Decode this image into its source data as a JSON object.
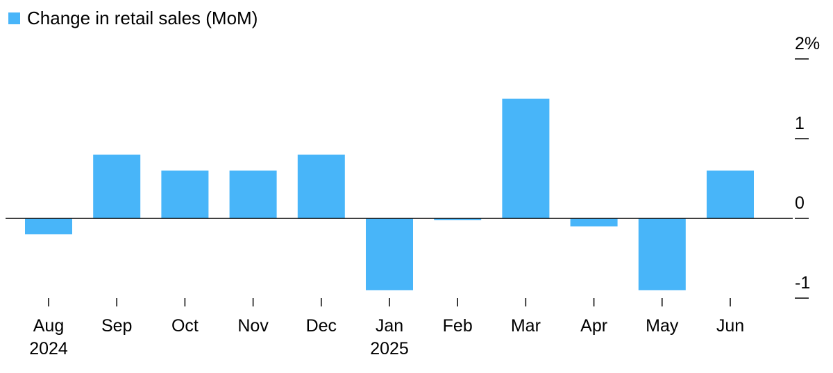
{
  "chart_data": {
    "type": "bar",
    "categories": [
      "Aug",
      "Sep",
      "Oct",
      "Nov",
      "Dec",
      "Jan",
      "Feb",
      "Mar",
      "Apr",
      "May",
      "Jun"
    ],
    "year_labels": [
      "2024",
      "",
      "",
      "",
      "",
      "2025",
      "",
      "",
      "",
      "",
      ""
    ],
    "series": [
      {
        "name": "Change in retail sales (MoM)",
        "values": [
          -0.2,
          0.8,
          0.6,
          0.6,
          0.8,
          -0.9,
          -0.02,
          1.5,
          -0.1,
          -0.9,
          0.6
        ],
        "color": "#48B5F9"
      }
    ],
    "yticks": [
      2,
      1,
      0,
      -1
    ],
    "ytick_labels": [
      "2%",
      "1",
      "0",
      "-1"
    ],
    "ylim": [
      -1,
      2
    ],
    "title": "",
    "xlabel": "",
    "ylabel": "",
    "legend": "top-left",
    "grid": false
  }
}
